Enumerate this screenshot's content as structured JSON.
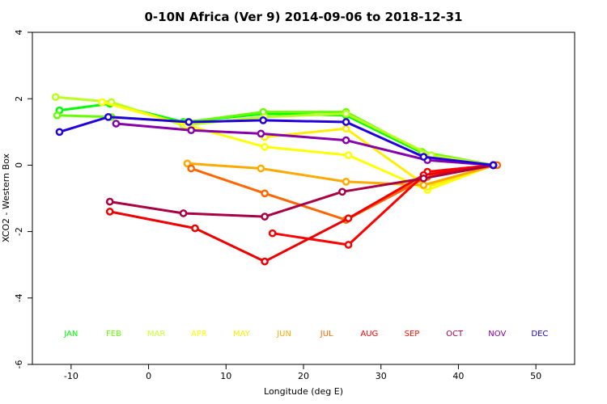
{
  "chart_data": {
    "type": "line",
    "title": "0-10N Africa (Ver 9)   2014-09-06 to 2018-12-31",
    "xlabel": "Longitude (deg E)",
    "ylabel": "XCO2 - Western Box",
    "xlim": [
      -15,
      55
    ],
    "ylim": [
      -6,
      4
    ],
    "xticks": [
      -10,
      0,
      10,
      20,
      30,
      40,
      50
    ],
    "yticks": [
      -6,
      -4,
      -2,
      0,
      2,
      4
    ],
    "grid": false,
    "months": [
      {
        "label": "JAN",
        "color": "#00ff00",
        "x": -10
      },
      {
        "label": "FEB",
        "color": "#66ff00",
        "x": -4.5
      },
      {
        "label": "MAR",
        "color": "#ccff33",
        "x": 1
      },
      {
        "label": "APR",
        "color": "#ffff00",
        "x": 6.5
      },
      {
        "label": "MAY",
        "color": "#ffee00",
        "x": 12
      },
      {
        "label": "JUN",
        "color": "#ffaa00",
        "x": 17.5
      },
      {
        "label": "JUL",
        "color": "#ff6600",
        "x": 23
      },
      {
        "label": "AUG",
        "color": "#ff0000",
        "x": 28.5
      },
      {
        "label": "SEP",
        "color": "#ff1100",
        "x": 34
      },
      {
        "label": "OCT",
        "color": "#aa0044",
        "x": 39.5
      },
      {
        "label": "NOV",
        "color": "#8800aa",
        "x": 45
      },
      {
        "label": "DEC",
        "color": "#2200dd",
        "x": 50.5
      }
    ],
    "month_labels_y": -5.15,
    "series": [
      {
        "color": "#00ff00",
        "lw": 3,
        "x": [
          -11.5,
          -5,
          4.5,
          15,
          25.5,
          35.5,
          44.5
        ],
        "y": [
          1.65,
          1.85,
          1.3,
          1.55,
          1.5,
          0.35,
          0
        ]
      },
      {
        "color": "#66ff00",
        "lw": 3,
        "x": [
          -11.8,
          -4.8,
          5,
          14.8,
          25.5,
          35.3,
          44.5
        ],
        "y": [
          1.5,
          1.45,
          1.3,
          1.6,
          1.6,
          0.4,
          0
        ]
      },
      {
        "color": "#bbff22",
        "lw": 3,
        "x": [
          -12,
          -4.8,
          4.5,
          15,
          25.5,
          36.5,
          44.5
        ],
        "y": [
          2.05,
          1.9,
          1.2,
          1.45,
          1.55,
          0.3,
          0
        ]
      },
      {
        "color": "#ffff00",
        "lw": 3,
        "x": [
          -6,
          5,
          15,
          25.8,
          36,
          44.5
        ],
        "y": [
          1.9,
          1.2,
          0.55,
          0.3,
          -0.75,
          0
        ]
      },
      {
        "color": "#ffee00",
        "lw": 3,
        "x": [
          15,
          25.5,
          36,
          44.5
        ],
        "y": [
          0.85,
          1.1,
          -0.65,
          0
        ]
      },
      {
        "color": "#ffaa00",
        "lw": 3,
        "x": [
          5,
          14.5,
          25.5,
          35.5,
          44.8
        ],
        "y": [
          0.05,
          -0.1,
          -0.5,
          -0.6,
          0
        ]
      },
      {
        "color": "#ff6600",
        "lw": 3,
        "x": [
          5.5,
          15,
          25.5,
          36,
          45
        ],
        "y": [
          -0.1,
          -0.85,
          -1.65,
          -0.35,
          0
        ]
      },
      {
        "color": "#ff0000",
        "lw": 3,
        "x": [
          16,
          25.8,
          36,
          44.5
        ],
        "y": [
          -2.05,
          -2.4,
          -0.2,
          0
        ]
      },
      {
        "color": "#ee0000",
        "lw": 3,
        "x": [
          -5,
          6,
          15,
          25.8,
          35.5,
          44.5
        ],
        "y": [
          -1.4,
          -1.9,
          -2.9,
          -1.6,
          -0.3,
          0
        ]
      },
      {
        "color": "#aa0044",
        "lw": 3,
        "x": [
          -5,
          4.5,
          15,
          25,
          35.5,
          44.5
        ],
        "y": [
          -1.1,
          -1.45,
          -1.55,
          -0.8,
          -0.4,
          0
        ]
      },
      {
        "color": "#8800aa",
        "lw": 3,
        "x": [
          -4.2,
          5.5,
          14.5,
          25.5,
          36,
          44.5
        ],
        "y": [
          1.25,
          1.05,
          0.95,
          0.75,
          0.15,
          0
        ]
      },
      {
        "color": "#2200dd",
        "lw": 3,
        "x": [
          -11.5,
          -5.2,
          5.2,
          14.8,
          25.5,
          35.5,
          44.5
        ],
        "y": [
          1.0,
          1.45,
          1.3,
          1.35,
          1.3,
          0.25,
          0
        ]
      }
    ]
  }
}
